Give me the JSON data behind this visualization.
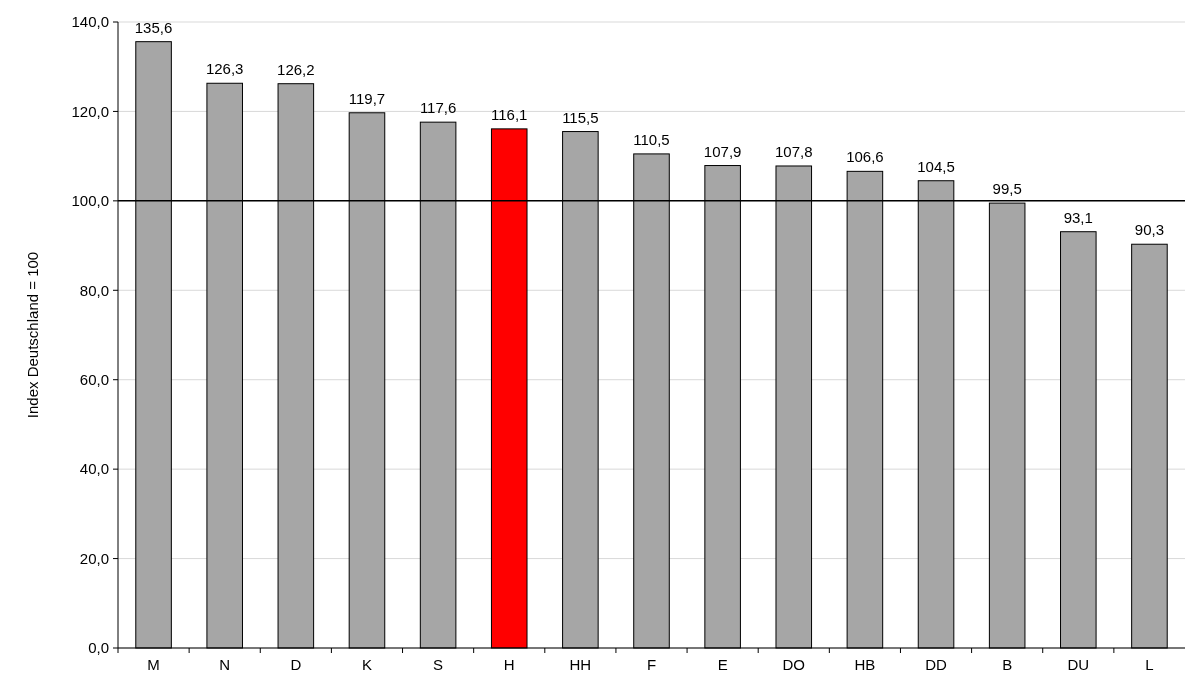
{
  "chart_data": {
    "type": "bar",
    "ylabel": "Index Deutschland = 100",
    "categories": [
      "M",
      "N",
      "D",
      "K",
      "S",
      "H",
      "HH",
      "F",
      "E",
      "DO",
      "HB",
      "DD",
      "B",
      "DU",
      "L"
    ],
    "values": [
      135.6,
      126.3,
      126.2,
      119.7,
      117.6,
      116.1,
      115.5,
      110.5,
      107.9,
      107.8,
      106.6,
      104.5,
      99.5,
      93.1,
      90.3
    ],
    "colors": [
      "#a6a6a6",
      "#a6a6a6",
      "#a6a6a6",
      "#a6a6a6",
      "#a6a6a6",
      "#ff0000",
      "#a6a6a6",
      "#a6a6a6",
      "#a6a6a6",
      "#a6a6a6",
      "#a6a6a6",
      "#a6a6a6",
      "#a6a6a6",
      "#a6a6a6",
      "#a6a6a6"
    ],
    "ylim": [
      0,
      140
    ],
    "yticks": [
      {
        "value": 0,
        "label": "0,0"
      },
      {
        "value": 20,
        "label": "20,0"
      },
      {
        "value": 40,
        "label": "40,0"
      },
      {
        "value": 60,
        "label": "60,0"
      },
      {
        "value": 80,
        "label": "80,0"
      },
      {
        "value": 100,
        "label": "100,0"
      },
      {
        "value": 120,
        "label": "120,0"
      },
      {
        "value": 140,
        "label": "140,0"
      }
    ],
    "value_labels": [
      "135,6",
      "126,3",
      "126,2",
      "119,7",
      "117,6",
      "116,1",
      "115,5",
      "110,5",
      "107,9",
      "107,8",
      "106,6",
      "104,5",
      "99,5",
      "93,1",
      "90,3"
    ],
    "grid": "y",
    "ref_lines": [
      {
        "axis": "y",
        "value": 100,
        "color": "#000000"
      }
    ]
  }
}
